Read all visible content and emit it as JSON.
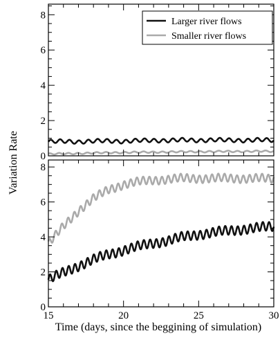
{
  "chart_data": [
    {
      "type": "line",
      "panel": "top",
      "xlim": [
        15,
        30
      ],
      "ylim": [
        0,
        8.6
      ],
      "yticks": [
        0,
        2,
        4,
        6,
        8
      ],
      "ytick_labels": [
        "0",
        "2",
        "4",
        "6",
        "8"
      ],
      "grid": false,
      "legend": {
        "placement": "top-right",
        "entries": [
          "Larger river flows",
          "Smaller river flows"
        ]
      },
      "series": [
        {
          "name": "Larger river flows",
          "color": "#111111",
          "x": [
            15,
            16,
            17,
            18,
            19,
            20,
            21,
            22,
            23,
            24,
            25,
            26,
            27,
            28,
            29,
            30
          ],
          "y": [
            0.8,
            0.82,
            0.8,
            0.83,
            0.85,
            0.82,
            0.86,
            0.88,
            0.87,
            0.9,
            0.88,
            0.9,
            0.89,
            0.88,
            0.9,
            0.88
          ],
          "oscillation_amplitude": 0.1,
          "oscillations_per_day": 1.6
        },
        {
          "name": "Smaller river flows",
          "color": "#aaaaaa",
          "x": [
            15,
            16,
            17,
            18,
            19,
            20,
            21,
            22,
            23,
            24,
            25,
            26,
            27,
            28,
            29,
            30
          ],
          "y": [
            0.1,
            0.12,
            0.14,
            0.16,
            0.18,
            0.19,
            0.2,
            0.21,
            0.22,
            0.23,
            0.24,
            0.24,
            0.25,
            0.25,
            0.26,
            0.25
          ],
          "oscillation_amplitude": 0.04,
          "oscillations_per_day": 1.6
        }
      ]
    },
    {
      "type": "line",
      "panel": "bottom",
      "xlim": [
        15,
        30
      ],
      "ylim": [
        0,
        8.4
      ],
      "xticks": [
        15,
        20,
        25,
        30
      ],
      "xtick_labels": [
        "15",
        "20",
        "25",
        "30"
      ],
      "yticks": [
        0,
        2,
        4,
        6,
        8
      ],
      "ytick_labels": [
        "0",
        "2",
        "4",
        "6",
        "8"
      ],
      "grid": false,
      "series": [
        {
          "name": "Larger river flows",
          "color": "#111111",
          "x": [
            15,
            16,
            17,
            18,
            19,
            20,
            21,
            22,
            23,
            24,
            25,
            26,
            27,
            28,
            29,
            30
          ],
          "y": [
            1.55,
            1.95,
            2.35,
            2.7,
            3.0,
            3.25,
            3.45,
            3.65,
            3.8,
            4.0,
            4.15,
            4.25,
            4.35,
            4.45,
            4.52,
            4.6
          ],
          "oscillation_amplitude": 0.25,
          "oscillations_per_day": 2.4
        },
        {
          "name": "Smaller river flows",
          "color": "#aaaaaa",
          "x": [
            15,
            16,
            17,
            18,
            19,
            20,
            21,
            22,
            23,
            24,
            25,
            26,
            27,
            28,
            29,
            30
          ],
          "y": [
            3.6,
            4.6,
            5.5,
            6.2,
            6.7,
            7.0,
            7.15,
            7.25,
            7.3,
            7.35,
            7.35,
            7.35,
            7.35,
            7.35,
            7.35,
            7.3
          ],
          "oscillation_amplitude": 0.22,
          "oscillations_per_day": 2.4
        }
      ]
    }
  ],
  "ylabel": "Variation Rate",
  "xlabel": "Time (days, since the beggining of simulation)"
}
